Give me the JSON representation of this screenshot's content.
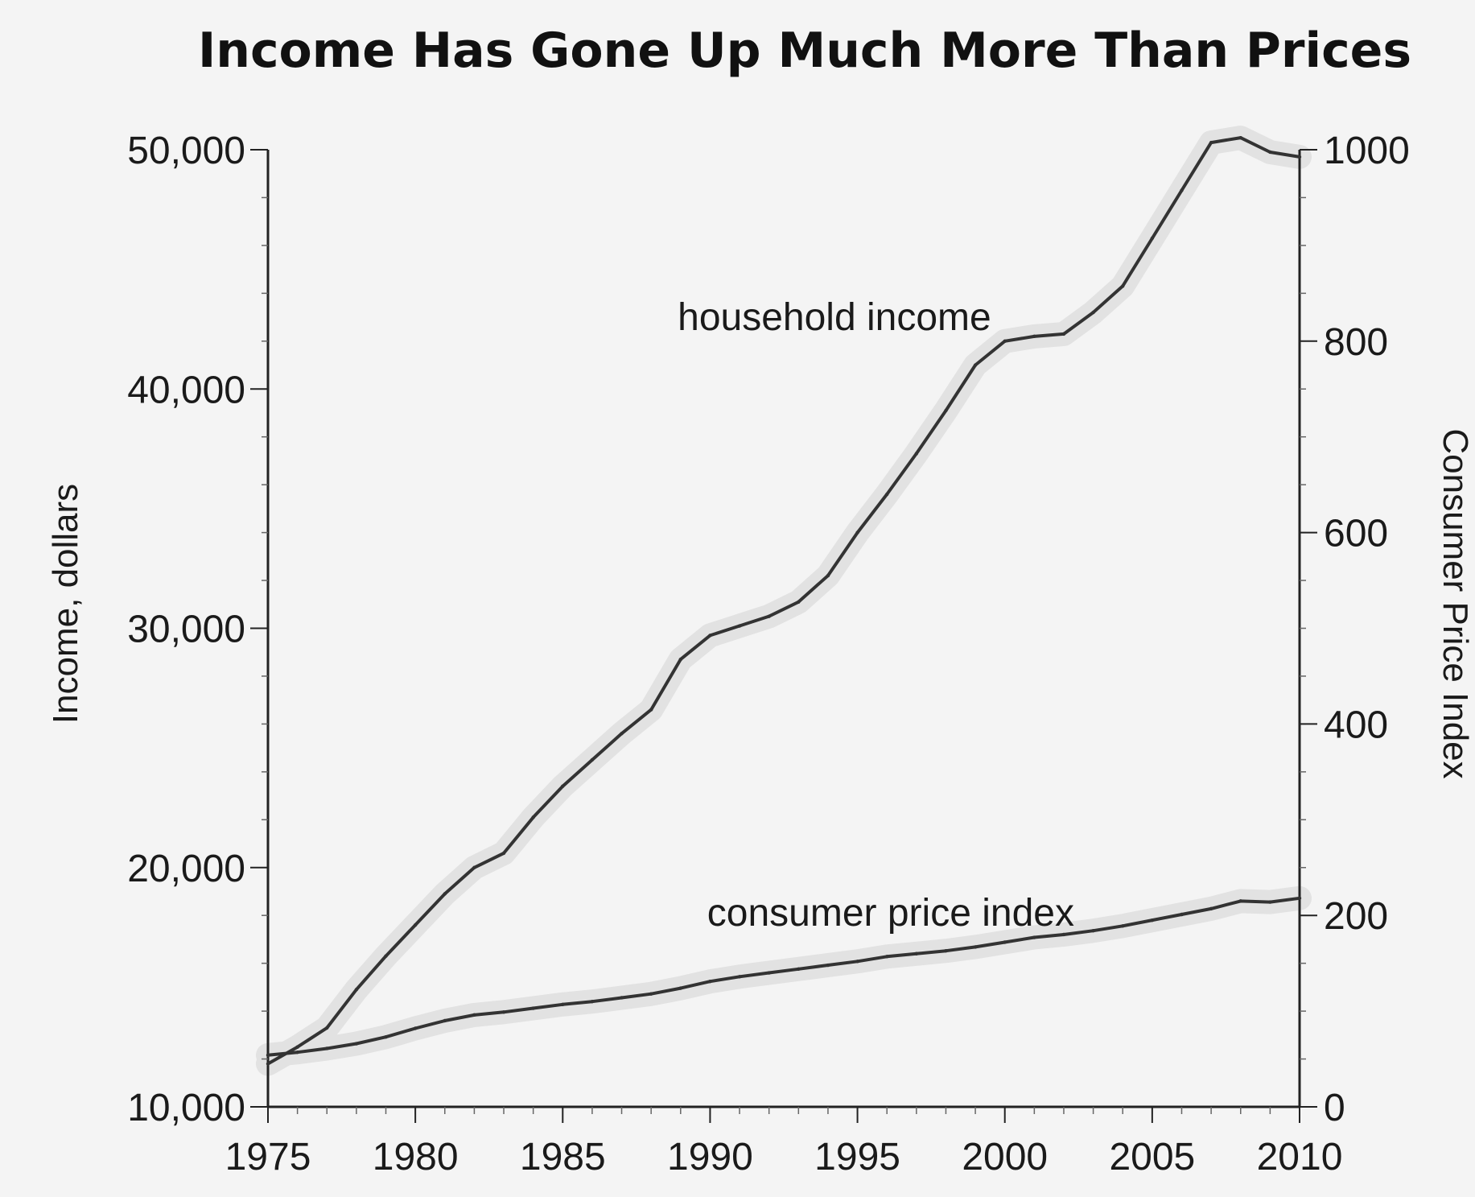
{
  "chart_data": {
    "type": "line",
    "title": "Income Has Gone Up Much More Than Prices",
    "xlabel": "",
    "ylabel": "Income, dollars",
    "y2label": "Consumer Price Index",
    "xlim": [
      1975,
      2010
    ],
    "ylim": [
      10000,
      50000
    ],
    "y2lim": [
      0,
      1000
    ],
    "x_ticks": [
      "1975",
      "1980",
      "1985",
      "1990",
      "1995",
      "2000",
      "2005",
      "2010"
    ],
    "y_ticks": [
      "10,000",
      "20,000",
      "30,000",
      "40,000",
      "50,000"
    ],
    "y2_ticks": [
      "0",
      "200",
      "400",
      "600",
      "800",
      "1000"
    ],
    "grid": false,
    "legend": "none",
    "series": [
      {
        "name": "household income",
        "axis": "left",
        "x": [
          1975,
          1976,
          1977,
          1978,
          1979,
          1980,
          1981,
          1982,
          1983,
          1984,
          1985,
          1986,
          1987,
          1988,
          1989,
          1990,
          1991,
          1992,
          1993,
          1994,
          1995,
          1996,
          1997,
          1998,
          1999,
          2000,
          2001,
          2002,
          2003,
          2004,
          2005,
          2006,
          2007,
          2008,
          2009,
          2010
        ],
        "values": [
          11800,
          12500,
          13300,
          14900,
          16300,
          17600,
          18900,
          20000,
          20600,
          22100,
          23400,
          24500,
          25600,
          26600,
          28700,
          29700,
          30100,
          30500,
          31100,
          32200,
          34000,
          35600,
          37300,
          39100,
          41000,
          42000,
          42200,
          42300,
          43200,
          44300,
          46300,
          48300,
          50300,
          50500,
          49900,
          49700
        ]
      },
      {
        "name": "consumer price index",
        "axis": "right",
        "x": [
          1975,
          1976,
          1977,
          1978,
          1979,
          1980,
          1981,
          1982,
          1983,
          1984,
          1985,
          1986,
          1987,
          1988,
          1989,
          1990,
          1991,
          1992,
          1993,
          1994,
          1995,
          1996,
          1997,
          1998,
          1999,
          2000,
          2001,
          2002,
          2003,
          2004,
          2005,
          2006,
          2007,
          2008,
          2009,
          2010
        ],
        "values": [
          54,
          57,
          61,
          66,
          73,
          82,
          90,
          96,
          99,
          103,
          107,
          110,
          114,
          118,
          124,
          131,
          136,
          140,
          144,
          148,
          152,
          157,
          160,
          163,
          167,
          172,
          177,
          180,
          184,
          189,
          195,
          201,
          207,
          215,
          214,
          218
        ]
      }
    ],
    "annotations": [
      {
        "text": "household income",
        "x": 1988.9,
        "y": 43000
      },
      {
        "text": "consumer price index",
        "x": 1989.9,
        "y": 18100
      }
    ]
  }
}
